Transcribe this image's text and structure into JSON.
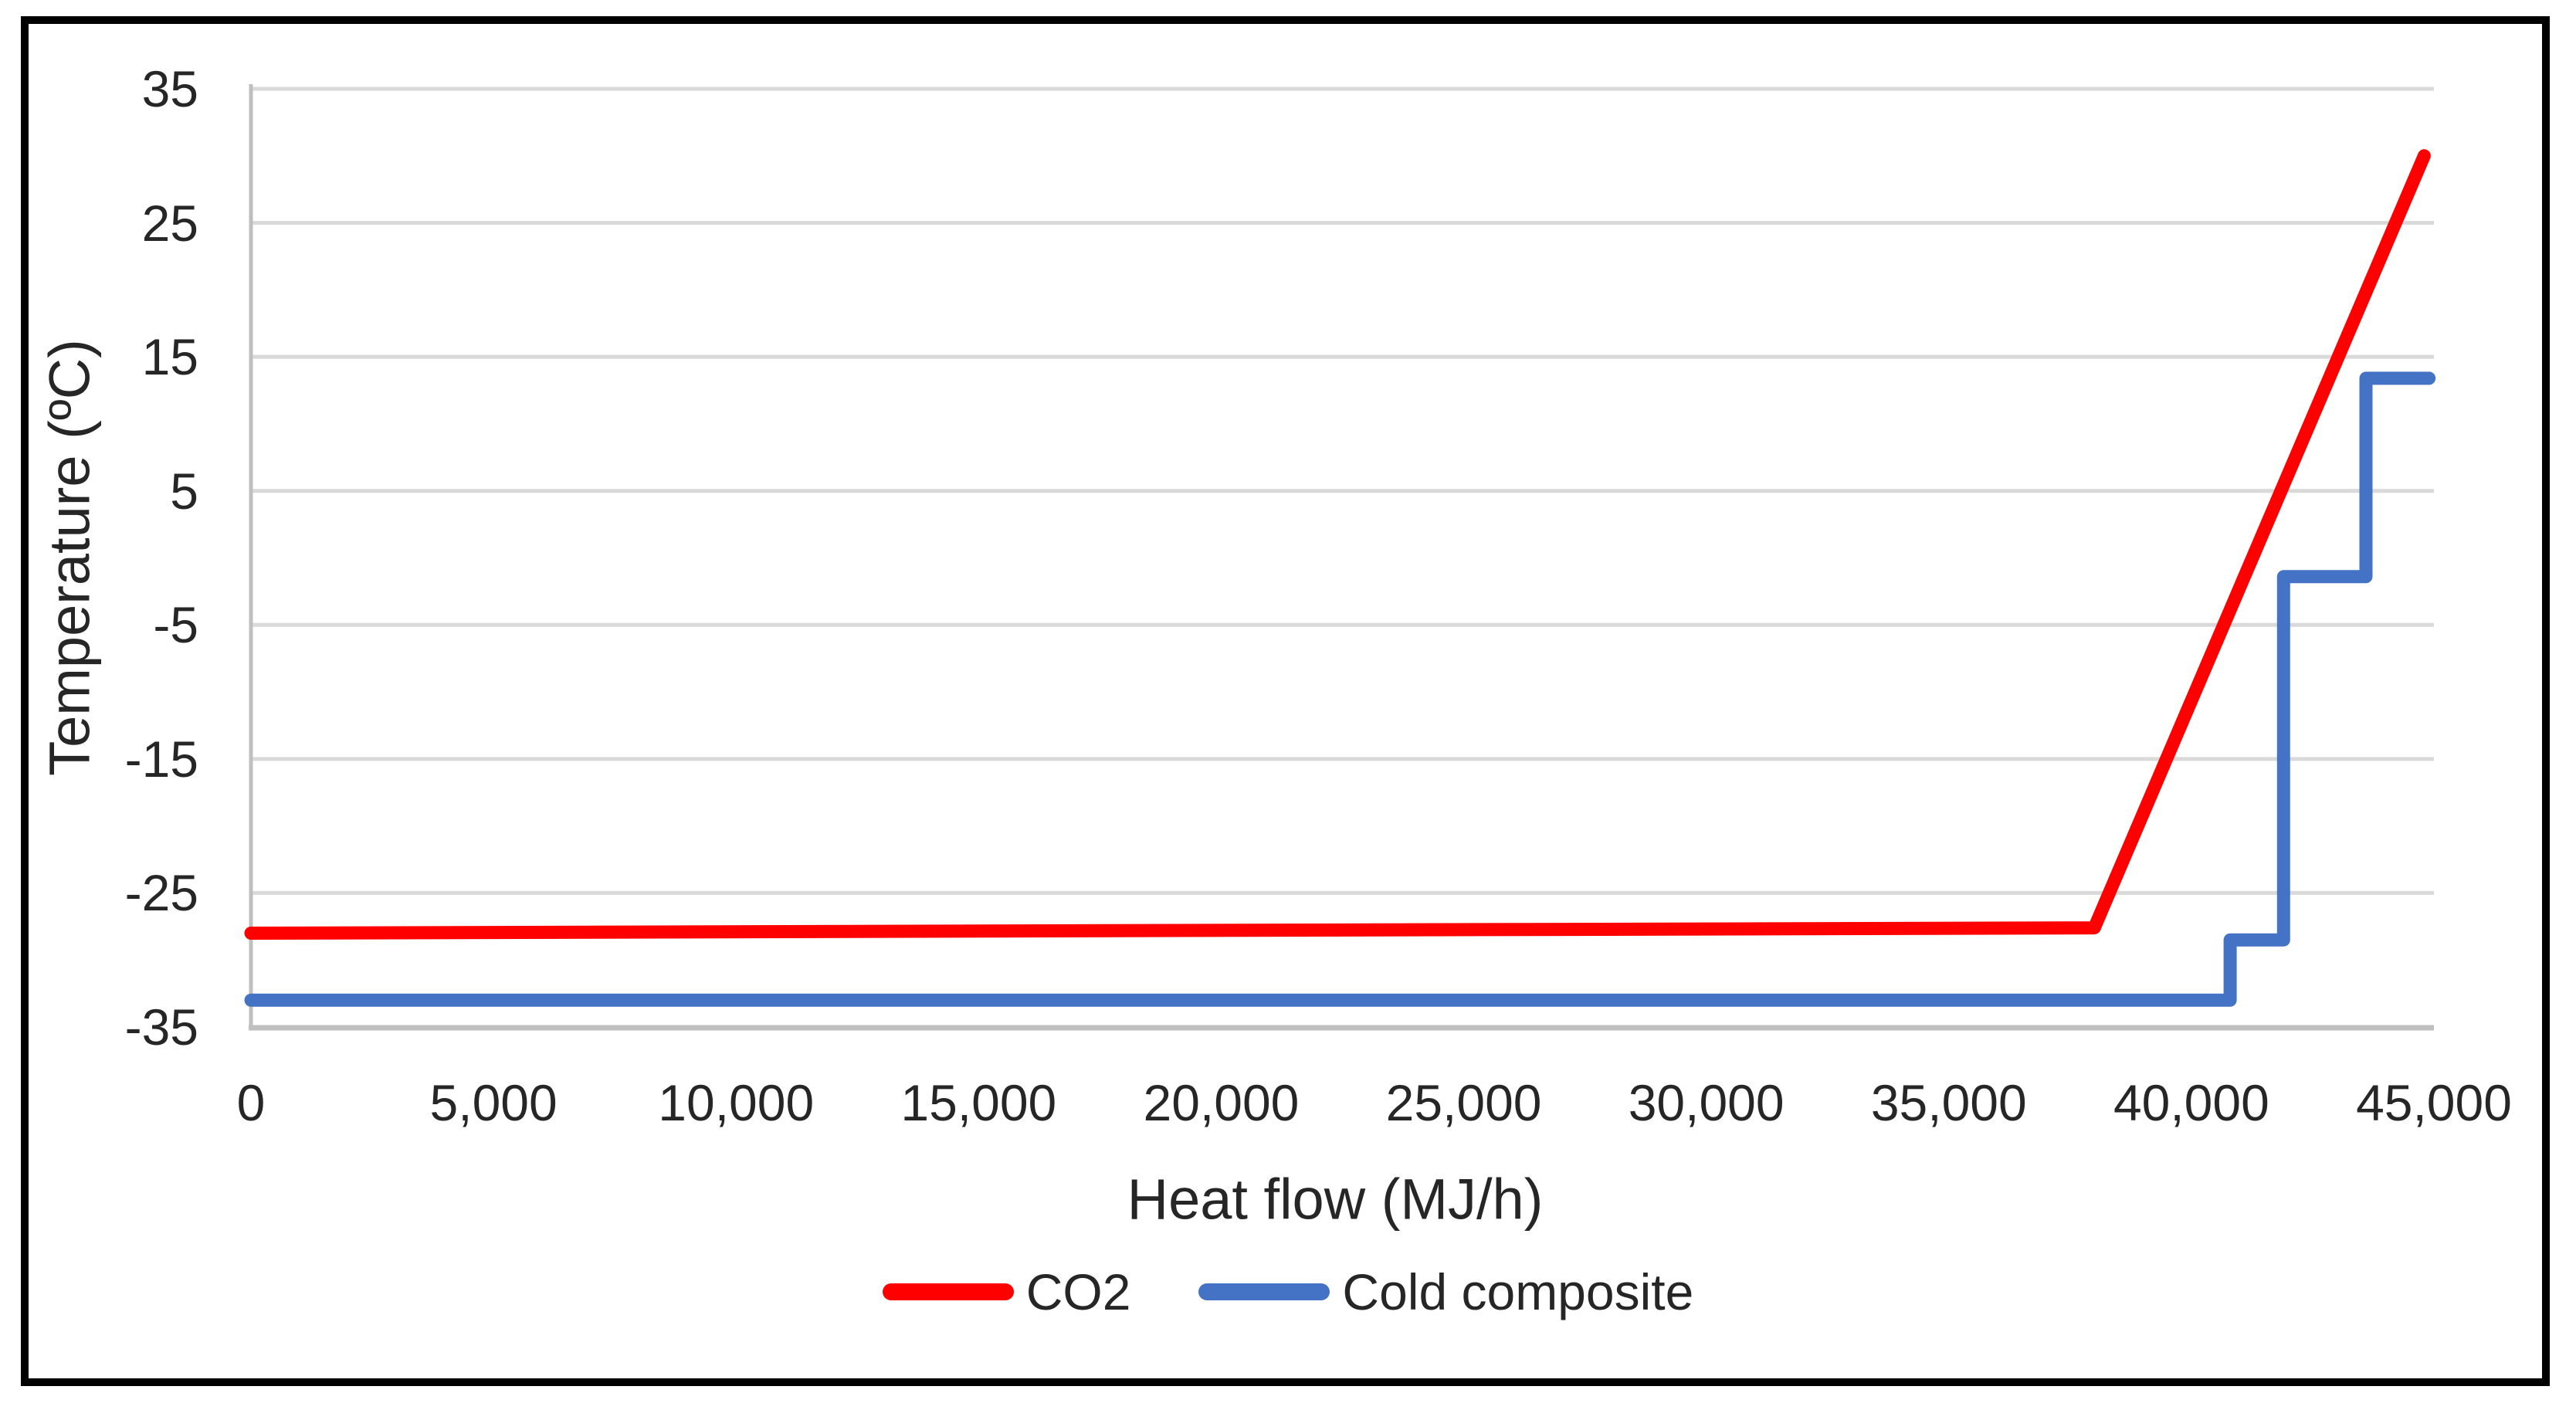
{
  "figure": {
    "background": "#FFFFFF",
    "border_color": "#000000"
  },
  "axes": {
    "x": {
      "title": "Heat flow (MJ/h)",
      "min": 0,
      "max": 45000,
      "tick_values": [
        0,
        5000,
        10000,
        15000,
        20000,
        25000,
        30000,
        35000,
        40000,
        45000
      ],
      "tick_labels": [
        "0",
        "5,000",
        "10,000",
        "15,000",
        "20,000",
        "25,000",
        "30,000",
        "35,000",
        "40,000",
        "45,000"
      ]
    },
    "y": {
      "title": "Temperature (ºC)",
      "min": -35,
      "max": 35,
      "tick_values": [
        35,
        25,
        15,
        5,
        -5,
        -15,
        -25,
        -35
      ],
      "tick_labels": [
        "35",
        "25",
        "15",
        "5",
        "-5",
        "-15",
        "-25",
        "-35"
      ]
    }
  },
  "legend": {
    "items": [
      {
        "label": "CO2",
        "color": "#FF0000"
      },
      {
        "label": "Cold composite",
        "color": "#4472C4"
      }
    ]
  },
  "style": {
    "gridline_color": "#D9D9D9",
    "axis_line_color": "#BFBFBF",
    "series_stroke_width": 17
  },
  "chart_data": {
    "type": "line",
    "title": "",
    "xlabel": "Heat flow (MJ/h)",
    "ylabel": "Temperature (ºC)",
    "xlim": [
      0,
      45000
    ],
    "ylim": [
      -35,
      35
    ],
    "grid": "horizontal-only",
    "legend_position": "bottom-center",
    "series": [
      {
        "name": "CO2",
        "color": "#FF0000",
        "points": [
          [
            0,
            -28
          ],
          [
            38000,
            -27.6
          ],
          [
            44800,
            30
          ]
        ]
      },
      {
        "name": "Cold composite",
        "color": "#4472C4",
        "points": [
          [
            0,
            -33
          ],
          [
            40800,
            -33
          ],
          [
            40800,
            -28.5
          ],
          [
            41900,
            -28.5
          ],
          [
            41900,
            -1.4
          ],
          [
            43600,
            -1.4
          ],
          [
            43600,
            13.4
          ],
          [
            44900,
            13.4
          ]
        ]
      }
    ]
  }
}
